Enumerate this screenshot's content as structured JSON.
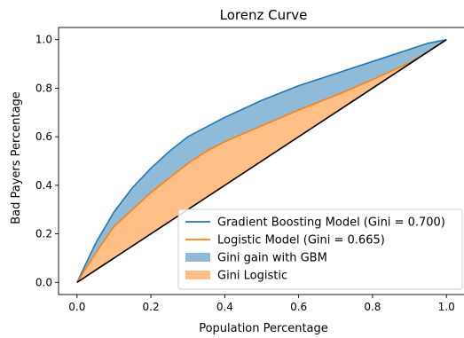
{
  "chart_data": {
    "type": "area",
    "title": "Lorenz Curve",
    "xlabel": "Population Percentage",
    "ylabel": "Bad Payers Percentage",
    "xlim": [
      -0.05,
      1.05
    ],
    "ylim": [
      -0.05,
      1.05
    ],
    "xticks": [
      0.0,
      0.2,
      0.4,
      0.6,
      0.8,
      1.0
    ],
    "xtick_labels": [
      "0.0",
      "0.2",
      "0.4",
      "0.6",
      "0.8",
      "1.0"
    ],
    "yticks": [
      0.0,
      0.2,
      0.4,
      0.6,
      0.8,
      1.0
    ],
    "ytick_labels": [
      "0.0",
      "0.2",
      "0.4",
      "0.6",
      "0.8",
      "1.0"
    ],
    "grid": false,
    "legend_position": "lower-right",
    "series": [
      {
        "name": "Gradient Boosting Model (Gini = 0.700)",
        "kind": "line",
        "color": "#1f77b4",
        "x": [
          0.0,
          0.05,
          0.1,
          0.15,
          0.2,
          0.25,
          0.3,
          0.35,
          0.4,
          0.5,
          0.6,
          0.7,
          0.8,
          0.9,
          0.95,
          1.0
        ],
        "y": [
          0.0,
          0.16,
          0.29,
          0.39,
          0.47,
          0.54,
          0.6,
          0.64,
          0.68,
          0.75,
          0.81,
          0.86,
          0.91,
          0.96,
          0.985,
          1.0
        ]
      },
      {
        "name": "Logistic Model (Gini = 0.665)",
        "kind": "line",
        "color": "#ff7f0e",
        "x": [
          0.0,
          0.05,
          0.1,
          0.15,
          0.2,
          0.25,
          0.3,
          0.35,
          0.4,
          0.5,
          0.6,
          0.7,
          0.8,
          0.9,
          0.95,
          1.0
        ],
        "y": [
          0.0,
          0.12,
          0.23,
          0.3,
          0.37,
          0.43,
          0.49,
          0.54,
          0.58,
          0.645,
          0.71,
          0.77,
          0.835,
          0.905,
          0.95,
          1.0
        ]
      },
      {
        "name": "Gini gain with GBM",
        "kind": "fill_between",
        "color": "#1f77b4",
        "alpha": 0.5,
        "between": [
          "Gradient Boosting Model (Gini = 0.700)",
          "Logistic Model (Gini = 0.665)"
        ]
      },
      {
        "name": "Gini Logistic",
        "kind": "fill_between",
        "color": "#ff7f0e",
        "alpha": 0.5,
        "between": [
          "Logistic Model (Gini = 0.665)",
          "diagonal"
        ]
      }
    ],
    "reference_line": {
      "x": [
        0.0,
        1.0
      ],
      "y": [
        0.0,
        1.0
      ],
      "color": "#000000"
    }
  }
}
